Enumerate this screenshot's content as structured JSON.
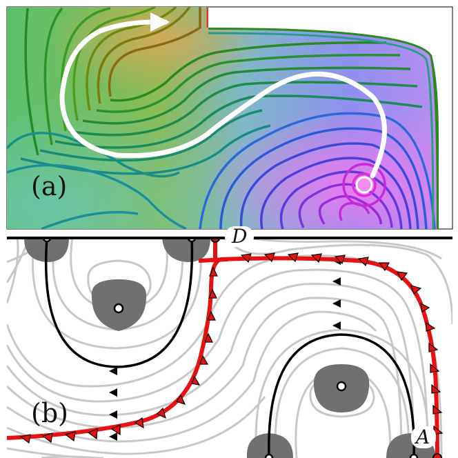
{
  "panels": [
    {
      "id": "a",
      "label": "(a)"
    },
    {
      "id": "b",
      "label": "(b)"
    }
  ],
  "points": {
    "D": "D",
    "A": "A"
  },
  "colors": {
    "contour_green": "#1e8a2a",
    "contour_brown": "#8a6a10",
    "contour_teal": "#1a8f8a",
    "contour_blue": "#2a4fd8",
    "contour_purple": "#9a2ad8",
    "contour_magenta": "#e02ae0",
    "flow_arrow": "#ffffff",
    "separatrix": "#e81010",
    "boundary": "#000000",
    "streamline": "#c8c8c8",
    "region_fill": "#707070"
  }
}
